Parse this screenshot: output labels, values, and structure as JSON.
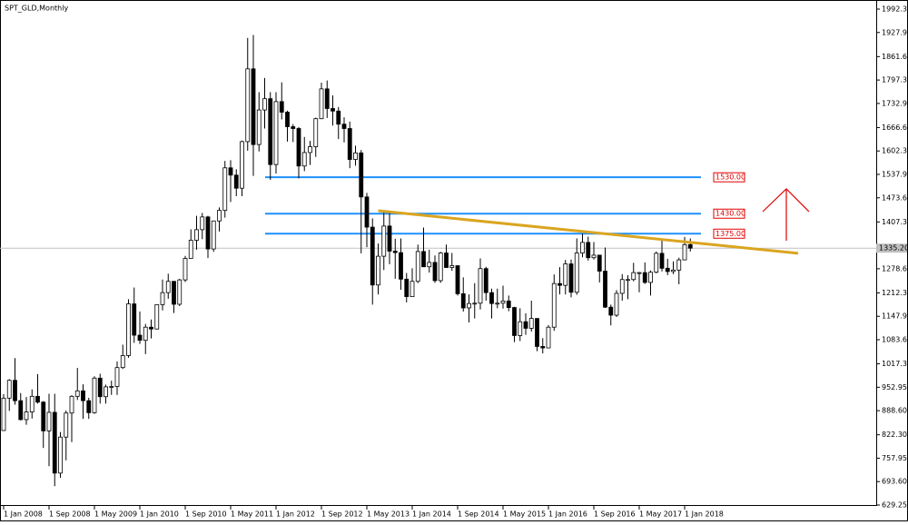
{
  "chart_data": {
    "type": "candlestick",
    "title": "SPT_GLD,Monthly",
    "x": [
      "1 Jan 2008",
      "1 Feb 2008",
      "1 Mar 2008",
      "1 Apr 2008",
      "1 May 2008",
      "1 Jun 2008",
      "1 Jul 2008",
      "1 Aug 2008",
      "1 Sep 2008",
      "1 Oct 2008",
      "1 Nov 2008",
      "1 Dec 2008",
      "1 Jan 2009",
      "1 Feb 2009",
      "1 Mar 2009",
      "1 Apr 2009",
      "1 May 2009",
      "1 Jun 2009",
      "1 Jul 2009",
      "1 Aug 2009",
      "1 Sep 2009",
      "1 Oct 2009",
      "1 Nov 2009",
      "1 Dec 2009",
      "1 Jan 2010",
      "1 Feb 2010",
      "1 Mar 2010",
      "1 Apr 2010",
      "1 May 2010",
      "1 Jun 2010",
      "1 Jul 2010",
      "1 Aug 2010",
      "1 Sep 2010",
      "1 Oct 2010",
      "1 Nov 2010",
      "1 Dec 2010",
      "1 Jan 2011",
      "1 Feb 2011",
      "1 Mar 2011",
      "1 Apr 2011",
      "1 May 2011",
      "1 Jun 2011",
      "1 Jul 2011",
      "1 Aug 2011",
      "1 Sep 2011",
      "1 Oct 2011",
      "1 Nov 2011",
      "1 Dec 2011",
      "1 Jan 2012",
      "1 Feb 2012",
      "1 Mar 2012",
      "1 Apr 2012",
      "1 May 2012",
      "1 Jun 2012",
      "1 Jul 2012",
      "1 Aug 2012",
      "1 Sep 2012",
      "1 Oct 2012",
      "1 Nov 2012",
      "1 Dec 2012",
      "1 Jan 2013",
      "1 Feb 2013",
      "1 Mar 2013",
      "1 Apr 2013",
      "1 May 2013",
      "1 Jun 2013",
      "1 Jul 2013",
      "1 Aug 2013",
      "1 Sep 2013",
      "1 Oct 2013",
      "1 Nov 2013",
      "1 Dec 2013",
      "1 Jan 2014",
      "1 Feb 2014",
      "1 Mar 2014",
      "1 Apr 2014",
      "1 May 2014",
      "1 Jun 2014",
      "1 Jul 2014",
      "1 Aug 2014",
      "1 Sep 2014",
      "1 Oct 2014",
      "1 Nov 2014",
      "1 Dec 2014",
      "1 Jan 2015",
      "1 Feb 2015",
      "1 Mar 2015",
      "1 Apr 2015",
      "1 May 2015",
      "1 Jun 2015",
      "1 Jul 2015",
      "1 Aug 2015",
      "1 Sep 2015",
      "1 Oct 2015",
      "1 Nov 2015",
      "1 Dec 2015",
      "1 Jan 2016",
      "1 Feb 2016",
      "1 Mar 2016",
      "1 Apr 2016",
      "1 May 2016",
      "1 Jun 2016",
      "1 Jul 2016",
      "1 Aug 2016",
      "1 Sep 2016",
      "1 Oct 2016",
      "1 Nov 2016",
      "1 Dec 2016",
      "1 Jan 2017",
      "1 Feb 2017",
      "1 Mar 2017",
      "1 Apr 2017",
      "1 May 2017",
      "1 Jun 2017",
      "1 Jul 2017",
      "1 Aug 2017",
      "1 Sep 2017",
      "1 Oct 2017",
      "1 Nov 2017",
      "1 Dec 2017",
      "1 Jan 2018",
      "1 Feb 2018"
    ],
    "open": [
      834,
      923,
      972,
      916,
      864,
      885,
      928,
      912,
      833,
      884,
      717,
      816,
      882,
      928,
      943,
      916,
      883,
      978,
      927,
      954,
      955,
      1007,
      1040,
      1182,
      1096,
      1082,
      1118,
      1113,
      1180,
      1213,
      1244,
      1181,
      1248,
      1307,
      1357,
      1386,
      1421,
      1333,
      1410,
      1439,
      1556,
      1536,
      1500,
      1628,
      1828,
      1620,
      1715,
      1746,
      1565,
      1738,
      1709,
      1669,
      1664,
      1561,
      1598,
      1614,
      1691,
      1773,
      1719,
      1712,
      1676,
      1664,
      1579,
      1597,
      1476,
      1393,
      1234,
      1313,
      1396,
      1327,
      1323,
      1250,
      1202,
      1244,
      1326,
      1284,
      1296,
      1246,
      1322,
      1282,
      1287,
      1210,
      1171,
      1183,
      1184,
      1279,
      1213,
      1183,
      1184,
      1190,
      1172,
      1095,
      1133,
      1115,
      1142,
      1065,
      1061,
      1118,
      1238,
      1233,
      1292,
      1214,
      1322,
      1351,
      1309,
      1316,
      1272,
      1173,
      1151,
      1211,
      1249,
      1249,
      1268,
      1268,
      1241,
      1269,
      1321,
      1280,
      1271,
      1275,
      1303,
      1345
    ],
    "high": [
      934,
      975,
      1033,
      937,
      926,
      947,
      989,
      915,
      935,
      935,
      830,
      889,
      931,
      1006,
      961,
      924,
      983,
      990,
      960,
      971,
      1024,
      1070,
      1195,
      1227,
      1161,
      1127,
      1139,
      1180,
      1249,
      1265,
      1245,
      1251,
      1314,
      1387,
      1424,
      1432,
      1424,
      1411,
      1447,
      1575,
      1577,
      1552,
      1631,
      1913,
      1921,
      1764,
      1803,
      1764,
      1764,
      1791,
      1713,
      1676,
      1668,
      1641,
      1630,
      1694,
      1790,
      1796,
      1755,
      1723,
      1695,
      1683,
      1617,
      1605,
      1487,
      1417,
      1348,
      1433,
      1434,
      1361,
      1362,
      1267,
      1280,
      1345,
      1392,
      1331,
      1315,
      1325,
      1345,
      1322,
      1288,
      1255,
      1208,
      1239,
      1307,
      1284,
      1224,
      1224,
      1232,
      1205,
      1174,
      1170,
      1156,
      1191,
      1142,
      1088,
      1124,
      1263,
      1283,
      1303,
      1304,
      1362,
      1375,
      1367,
      1352,
      1317,
      1337,
      1180,
      1220,
      1264,
      1261,
      1295,
      1270,
      1296,
      1274,
      1326,
      1357,
      1306,
      1299,
      1309,
      1366,
      1362
    ],
    "low": [
      833,
      888,
      905,
      862,
      850,
      867,
      908,
      786,
      736,
      681,
      704,
      752,
      802,
      918,
      866,
      866,
      880,
      908,
      908,
      932,
      932,
      1003,
      1034,
      1075,
      1072,
      1044,
      1087,
      1112,
      1164,
      1196,
      1157,
      1176,
      1242,
      1315,
      1331,
      1360,
      1308,
      1325,
      1381,
      1419,
      1462,
      1478,
      1478,
      1603,
      1534,
      1601,
      1664,
      1523,
      1540,
      1689,
      1628,
      1627,
      1527,
      1547,
      1564,
      1586,
      1690,
      1693,
      1672,
      1635,
      1626,
      1555,
      1562,
      1321,
      1338,
      1180,
      1208,
      1275,
      1291,
      1251,
      1221,
      1186,
      1203,
      1239,
      1286,
      1268,
      1240,
      1240,
      1282,
      1273,
      1205,
      1161,
      1131,
      1142,
      1167,
      1191,
      1142,
      1170,
      1169,
      1162,
      1077,
      1080,
      1097,
      1106,
      1052,
      1046,
      1062,
      1108,
      1208,
      1208,
      1200,
      1207,
      1310,
      1301,
      1304,
      1241,
      1171,
      1123,
      1146,
      1191,
      1195,
      1244,
      1214,
      1237,
      1205,
      1266,
      1271,
      1261,
      1264,
      1236,
      1302,
      1326
    ],
    "close": [
      923,
      972,
      916,
      864,
      885,
      928,
      912,
      833,
      884,
      717,
      816,
      882,
      928,
      943,
      916,
      883,
      978,
      927,
      954,
      955,
      1007,
      1040,
      1182,
      1096,
      1082,
      1118,
      1113,
      1180,
      1213,
      1244,
      1181,
      1248,
      1307,
      1357,
      1386,
      1421,
      1333,
      1410,
      1439,
      1556,
      1536,
      1500,
      1628,
      1828,
      1620,
      1715,
      1746,
      1565,
      1738,
      1709,
      1669,
      1664,
      1561,
      1598,
      1614,
      1691,
      1773,
      1719,
      1712,
      1676,
      1664,
      1579,
      1597,
      1476,
      1393,
      1234,
      1313,
      1396,
      1327,
      1323,
      1250,
      1202,
      1244,
      1326,
      1284,
      1296,
      1246,
      1322,
      1282,
      1287,
      1210,
      1171,
      1183,
      1184,
      1279,
      1213,
      1183,
      1184,
      1190,
      1172,
      1095,
      1133,
      1115,
      1142,
      1065,
      1061,
      1118,
      1238,
      1233,
      1292,
      1214,
      1322,
      1351,
      1309,
      1316,
      1272,
      1173,
      1151,
      1211,
      1249,
      1249,
      1268,
      1268,
      1241,
      1269,
      1321,
      1280,
      1271,
      1275,
      1303,
      1345,
      1335.2
    ],
    "ylim": [
      629.25,
      1992.3
    ],
    "yticks": [
      {
        "value": 1992.3,
        "label": "1992.30"
      },
      {
        "value": 1927.95,
        "label": "1927.95"
      },
      {
        "value": 1861.65,
        "label": "1861.65"
      },
      {
        "value": 1797.3,
        "label": "1797.30"
      },
      {
        "value": 1732.95,
        "label": "1732.95"
      },
      {
        "value": 1666.65,
        "label": "1666.65"
      },
      {
        "value": 1602.3,
        "label": "1602.30"
      },
      {
        "value": 1537.95,
        "label": "1537.95"
      },
      {
        "value": 1473.6,
        "label": "1473.60"
      },
      {
        "value": 1407.3,
        "label": "1407.30"
      },
      {
        "value": 1278.6,
        "label": "1278.60"
      },
      {
        "value": 1212.3,
        "label": "1212.30"
      },
      {
        "value": 1147.95,
        "label": "1147.95"
      },
      {
        "value": 1083.6,
        "label": "1083.60"
      },
      {
        "value": 1017.3,
        "label": "1017.30"
      },
      {
        "value": 952.95,
        "label": "952.95"
      },
      {
        "value": 888.6,
        "label": "888.60"
      },
      {
        "value": 822.3,
        "label": "822.30"
      },
      {
        "value": 757.95,
        "label": "757.95"
      },
      {
        "value": 693.6,
        "label": "693.60"
      },
      {
        "value": 629.25,
        "label": "629.25"
      }
    ],
    "xticks": [
      "1 Jan 2008",
      "1 Sep 2008",
      "1 May 2009",
      "1 Jan 2010",
      "1 Sep 2010",
      "1 May 2011",
      "1 Jan 2012",
      "1 Sep 2012",
      "1 May 2013",
      "1 Jan 2014",
      "1 Sep 2014",
      "1 May 2015",
      "1 Jan 2016",
      "1 Sep 2016",
      "1 May 2017",
      "1 Jan 2018"
    ],
    "levels": [
      {
        "value": 1530,
        "label": "1530.00"
      },
      {
        "value": 1430,
        "label": "1430.00"
      },
      {
        "value": 1375,
        "label": "1375.00"
      }
    ],
    "last_price": {
      "value": 1335.2,
      "label": "1335.20"
    },
    "trendline": {
      "x": [
        "1 Jul 2013",
        "1 Sep 2019"
      ],
      "values": [
        1438,
        1321
      ]
    }
  }
}
